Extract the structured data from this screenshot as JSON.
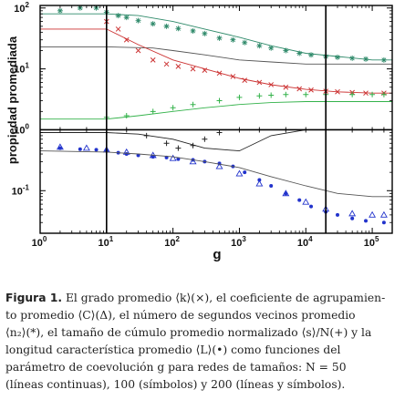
{
  "chart_data": {
    "type": "scatter",
    "title": "",
    "xlabel": "g",
    "ylabel": "propiedad promediada",
    "xscale": "log",
    "yscale": "log",
    "xlim": [
      1,
      200000
    ],
    "ylim": [
      0.02,
      110
    ],
    "grid": false,
    "legend": "none",
    "x_ticks": [
      {
        "value": 1,
        "label": "10",
        "exp": "0"
      },
      {
        "value": 10,
        "label": "10",
        "exp": "1"
      },
      {
        "value": 100,
        "label": "10",
        "exp": "2"
      },
      {
        "value": 1000,
        "label": "10",
        "exp": "3"
      },
      {
        "value": 10000,
        "label": "10",
        "exp": "4"
      },
      {
        "value": 100000,
        "label": "10",
        "exp": "5"
      }
    ],
    "y_ticks": [
      {
        "value": 0.1,
        "label": "10",
        "exp": "-1"
      },
      {
        "value": 1,
        "label": "10",
        "exp": "0"
      },
      {
        "value": 10,
        "label": "10",
        "exp": "1"
      },
      {
        "value": 100,
        "label": "10",
        "exp": "2"
      }
    ],
    "vlines": [
      10,
      20000
    ],
    "hlines": [
      1
    ],
    "series": [
      {
        "marker": "star",
        "color": "#2f8a6a",
        "style": "symbols",
        "x": [
          2,
          4,
          7,
          10,
          15,
          20,
          30,
          50,
          80,
          120,
          200,
          300,
          500,
          800,
          1200,
          2000,
          3000,
          5000,
          8000,
          12000,
          20000,
          30000,
          50000,
          80000,
          150000
        ],
        "y": [
          90,
          100,
          100,
          85,
          75,
          70,
          62,
          55,
          50,
          46,
          42,
          38,
          32,
          30,
          27,
          24,
          22,
          20,
          18,
          17,
          16,
          15.5,
          15,
          14.5,
          14
        ]
      },
      {
        "marker": "line",
        "color": "#2f8a6a",
        "style": "line",
        "x": [
          1,
          10,
          30,
          100,
          300,
          1000,
          3000,
          10000,
          30000,
          100000,
          200000
        ],
        "y": [
          80,
          80,
          75,
          60,
          45,
          33,
          24,
          18,
          16,
          14,
          14
        ]
      },
      {
        "marker": "line",
        "color": "#555555",
        "style": "line",
        "x": [
          1,
          10,
          50,
          100,
          300,
          1000,
          3000,
          10000,
          30000,
          100000,
          200000
        ],
        "y": [
          23,
          23,
          22,
          20,
          17,
          14,
          13,
          12,
          12,
          12,
          12
        ]
      },
      {
        "marker": "x",
        "color": "#cc3333",
        "style": "symbols",
        "x": [
          10,
          15,
          20,
          30,
          50,
          80,
          120,
          200,
          300,
          500,
          800,
          1200,
          2000,
          3000,
          5000,
          8000,
          12000,
          20000,
          30000,
          50000,
          80000,
          150000
        ],
        "y": [
          60,
          45,
          30,
          20,
          14,
          12,
          11,
          10,
          9.5,
          8.5,
          7.5,
          6.5,
          6,
          5.5,
          5,
          4.7,
          4.5,
          4.3,
          4.2,
          4.1,
          4,
          4
        ]
      },
      {
        "marker": "line",
        "color": "#cc3333",
        "style": "line",
        "x": [
          1,
          10,
          30,
          100,
          300,
          1000,
          3000,
          10000,
          30000,
          100000,
          200000
        ],
        "y": [
          45,
          45,
          25,
          14,
          10,
          7,
          5.5,
          4.6,
          4.2,
          4,
          4
        ]
      },
      {
        "marker": "plus",
        "color": "#33b24a",
        "style": "symbols",
        "x": [
          10,
          20,
          50,
          100,
          200,
          500,
          1000,
          2000,
          3000,
          5000,
          10000,
          20000,
          50000,
          100000,
          150000
        ],
        "y": [
          1.6,
          1.7,
          2,
          2.3,
          2.6,
          3,
          3.4,
          3.6,
          3.7,
          3.8,
          3.8,
          3.8,
          3.8,
          3.8,
          3.8
        ]
      },
      {
        "marker": "line",
        "color": "#33b24a",
        "style": "line",
        "x": [
          1,
          10,
          30,
          100,
          300,
          1000,
          3000,
          10000,
          30000,
          100000,
          200000
        ],
        "y": [
          1.5,
          1.5,
          1.7,
          2,
          2.3,
          2.6,
          2.8,
          2.9,
          2.9,
          2.9,
          2.9
        ]
      },
      {
        "marker": "plus",
        "color": "#222222",
        "style": "symbols",
        "x": [
          2,
          5,
          10,
          20,
          40,
          80,
          120,
          200,
          300,
          500,
          1000,
          2000,
          5000,
          10000,
          20000,
          50000,
          100000,
          150000
        ],
        "y": [
          1,
          1,
          1,
          1,
          0.8,
          0.6,
          0.5,
          0.55,
          0.7,
          0.9,
          1,
          1,
          1,
          1,
          1,
          1,
          1,
          1
        ]
      },
      {
        "marker": "line",
        "color": "#222222",
        "style": "line",
        "x": [
          1,
          10,
          30,
          100,
          300,
          1000,
          3000,
          10000,
          30000,
          100000,
          200000
        ],
        "y": [
          0.9,
          0.9,
          0.85,
          0.7,
          0.5,
          0.45,
          0.8,
          1,
          1,
          1,
          1
        ]
      },
      {
        "marker": "circle",
        "color": "#2233cc",
        "style": "symbols",
        "x": [
          2,
          4,
          7,
          10,
          15,
          20,
          30,
          50,
          80,
          120,
          200,
          300,
          500,
          800,
          1200,
          2000,
          3000,
          5000,
          8000,
          12000,
          20000,
          30000,
          50000,
          80000,
          150000
        ],
        "y": [
          0.5,
          0.48,
          0.47,
          0.45,
          0.42,
          0.4,
          0.38,
          0.36,
          0.35,
          0.33,
          0.32,
          0.3,
          0.28,
          0.25,
          0.2,
          0.15,
          0.12,
          0.09,
          0.07,
          0.055,
          0.045,
          0.04,
          0.035,
          0.032,
          0.03
        ]
      },
      {
        "marker": "triangle",
        "color": "#2233cc",
        "style": "symbols",
        "x": [
          2,
          5,
          10,
          20,
          50,
          100,
          200,
          500,
          1000,
          2000,
          5000,
          10000,
          20000,
          50000,
          100000,
          150000
        ],
        "y": [
          0.52,
          0.5,
          0.47,
          0.43,
          0.38,
          0.34,
          0.3,
          0.25,
          0.19,
          0.13,
          0.09,
          0.065,
          0.05,
          0.042,
          0.04,
          0.04
        ]
      },
      {
        "marker": "line",
        "color": "#555555",
        "style": "line",
        "x": [
          1,
          10,
          30,
          100,
          300,
          1000,
          3000,
          10000,
          30000,
          100000,
          200000
        ],
        "y": [
          0.45,
          0.43,
          0.4,
          0.36,
          0.3,
          0.24,
          0.17,
          0.12,
          0.09,
          0.08,
          0.08
        ]
      }
    ]
  },
  "caption": {
    "figure_label": "Figura 1.",
    "lines": [
      " El grado promedio ⟨k⟩(×), el coeficiente de agrupamien-",
      "to promedio ⟨C⟩(Δ), el número de segundos vecinos promedio",
      "⟨n₂⟩(*), el tamaño de cúmulo promedio normalizado ⟨s⟩/N(+) y la",
      "longitud característica promedio ⟨L⟩(•) como funciones del",
      "parámetro de coevolución g para redes de tamaños: N = 50",
      "(líneas continuas), 100 (símbolos) y 200 (líneas y símbolos)."
    ]
  }
}
